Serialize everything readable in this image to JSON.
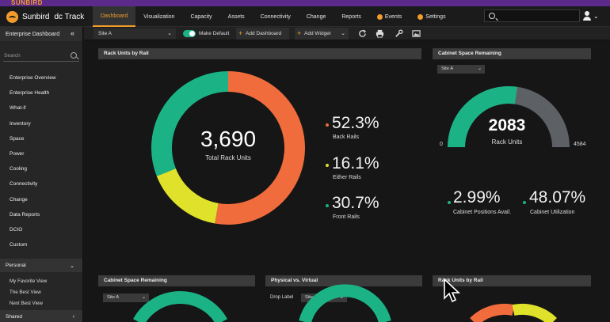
{
  "brand_strip": {
    "text": "SUNBIRD"
  },
  "header": {
    "logo_text": "Sunbird",
    "product": "dc Track",
    "tabs": [
      {
        "label": "Dashboard",
        "active": true
      },
      {
        "label": "Visualization"
      },
      {
        "label": "Capacity"
      },
      {
        "label": "Assets"
      },
      {
        "label": "Connectivity"
      },
      {
        "label": "Change"
      },
      {
        "label": "Reports"
      },
      {
        "label": "Events",
        "icon": "alert-icon"
      },
      {
        "label": "Settings",
        "icon": "gear-icon"
      }
    ]
  },
  "sidebar": {
    "title": "Enterprise Dashboard",
    "search_placeholder": "Search",
    "items": [
      "Enterprise Overview",
      "Enterprise Health",
      "What-if",
      "Inventory",
      "Space",
      "Power",
      "Cooling",
      "Connectivity",
      "Change",
      "Data Reports",
      "DCIO",
      "Custom"
    ],
    "personal_label": "Personal",
    "personal_items": [
      "My Favorite View",
      "The Best View",
      "Next Best View"
    ],
    "shared_label": "Shared"
  },
  "toolbar": {
    "site": "Site A",
    "make_default": "Make Default",
    "add_dashboard": "Add Dashboard",
    "add_widget": "Add Widget"
  },
  "colors": {
    "orange": "#f06c3c",
    "green": "#1bb386",
    "yellow": "#dfe12a",
    "gray": "#5d6166"
  },
  "widgets": {
    "rack_units": {
      "title": "Rack Units by Rail",
      "total": "3,690",
      "total_label": "Total Rack Units",
      "slices": [
        {
          "label": "Back Rails",
          "pct_text": "52.3%",
          "value": 52.3,
          "color": "#f06c3c"
        },
        {
          "label": "Either Rails",
          "pct_text": "16.1%",
          "value": 16.1,
          "color": "#dfe12a"
        },
        {
          "label": "Front Rails",
          "pct_text": "30.7%",
          "value": 30.7,
          "color": "#1bb386"
        }
      ]
    },
    "cabinet_space": {
      "title": "Cabinet Space Remaining",
      "site": "Site A",
      "value": "2083",
      "unit": "Rack Units",
      "min": "0",
      "max": "4584",
      "gauge_value": 2083,
      "gauge_max": 4584,
      "stats": [
        {
          "value": "2.99%",
          "label": "Cabinet Positions Avail."
        },
        {
          "value": "48.07%",
          "label": "Cabinet Utilization"
        }
      ]
    },
    "bottom": [
      {
        "title": "Cabinet Space Remaining",
        "site": "Site A"
      },
      {
        "title": "Physical vs. Virtual",
        "drop_label": "Drop Label",
        "site": "Site A"
      },
      {
        "title": "Rack Units by Rail"
      }
    ]
  }
}
